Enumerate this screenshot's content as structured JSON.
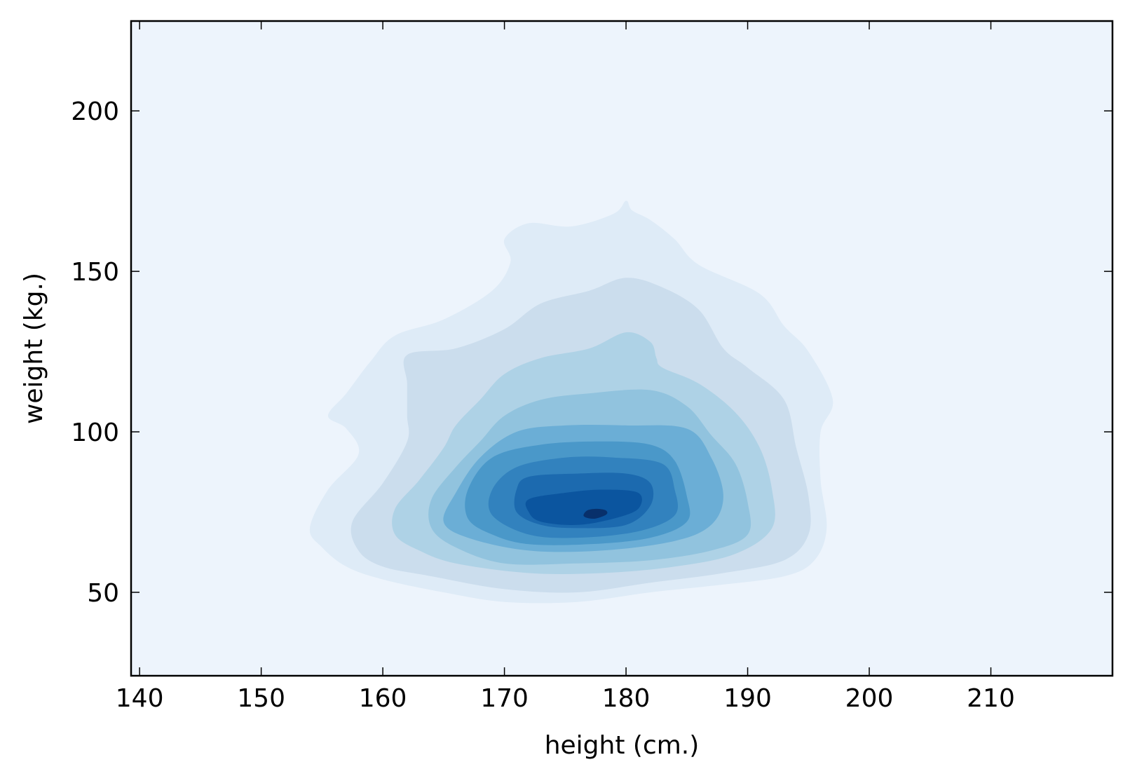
{
  "chart_data": {
    "type": "kde-contour",
    "title": "",
    "xlabel": "height (cm.)",
    "ylabel": "weight (kg.)",
    "xlim": [
      139.3,
      220
    ],
    "ylim": [
      24,
      228
    ],
    "xticks": [
      140,
      150,
      160,
      170,
      180,
      190,
      200,
      210
    ],
    "yticks": [
      50,
      100,
      150,
      200
    ],
    "grid": false,
    "legend": "none",
    "colors": {
      "background": "#edf4fc",
      "levels": [
        "#deebf7",
        "#cbdded",
        "#aed2e6",
        "#91c3de",
        "#6baed6",
        "#4a98c9",
        "#3282be",
        "#1c6aaf",
        "#0b559f",
        "#08306b"
      ]
    },
    "contours": [
      {
        "level": 1,
        "points": [
          [
            155,
            64
          ],
          [
            154,
            70
          ],
          [
            155.5,
            82
          ],
          [
            158,
            93
          ],
          [
            157,
            101
          ],
          [
            155.5,
            105
          ],
          [
            157,
            112
          ],
          [
            159,
            122
          ],
          [
            161,
            130
          ],
          [
            165,
            135
          ],
          [
            169,
            144
          ],
          [
            170.5,
            153
          ],
          [
            170,
            160
          ],
          [
            172,
            165
          ],
          [
            175.5,
            164
          ],
          [
            179,
            168
          ],
          [
            180,
            172
          ],
          [
            180.5,
            169
          ],
          [
            182,
            166
          ],
          [
            184,
            160
          ],
          [
            186,
            152
          ],
          [
            191,
            143
          ],
          [
            193,
            133
          ],
          [
            195,
            125
          ],
          [
            197,
            110
          ],
          [
            196,
            100
          ],
          [
            196,
            85
          ],
          [
            196.5,
            70
          ],
          [
            195.5,
            60
          ],
          [
            193,
            55
          ],
          [
            187,
            52
          ],
          [
            182,
            50
          ],
          [
            176,
            47
          ],
          [
            170,
            47
          ],
          [
            165,
            50
          ],
          [
            160,
            54
          ],
          [
            157,
            58
          ]
        ]
      },
      {
        "level": 2,
        "points": [
          [
            158,
            63
          ],
          [
            157.5,
            72
          ],
          [
            160,
            84
          ],
          [
            162,
            97
          ],
          [
            162,
            105
          ],
          [
            162,
            115
          ],
          [
            162,
            124
          ],
          [
            166,
            126
          ],
          [
            170,
            132
          ],
          [
            173,
            140
          ],
          [
            177,
            144
          ],
          [
            180,
            148
          ],
          [
            183,
            145
          ],
          [
            186,
            138
          ],
          [
            188,
            126
          ],
          [
            190,
            120
          ],
          [
            193,
            110
          ],
          [
            194,
            95
          ],
          [
            195,
            80
          ],
          [
            195,
            68
          ],
          [
            193,
            60
          ],
          [
            188,
            56
          ],
          [
            182,
            53
          ],
          [
            176,
            50
          ],
          [
            170,
            51
          ],
          [
            164,
            55
          ],
          [
            160,
            58
          ]
        ]
      },
      {
        "level": 3,
        "points": [
          [
            161,
            68
          ],
          [
            161,
            76
          ],
          [
            163,
            85
          ],
          [
            165,
            95
          ],
          [
            166,
            102
          ],
          [
            168,
            110
          ],
          [
            170,
            118
          ],
          [
            173,
            123
          ],
          [
            177,
            126
          ],
          [
            180,
            131
          ],
          [
            182,
            128
          ],
          [
            182.5,
            123
          ],
          [
            183,
            120
          ],
          [
            186,
            115
          ],
          [
            189,
            106
          ],
          [
            191,
            95
          ],
          [
            192,
            82
          ],
          [
            192,
            70
          ],
          [
            189,
            62
          ],
          [
            184,
            58
          ],
          [
            178,
            56
          ],
          [
            172,
            56
          ],
          [
            166,
            59
          ],
          [
            163,
            63
          ]
        ]
      },
      {
        "level": 4,
        "points": [
          [
            164,
            70
          ],
          [
            164,
            79
          ],
          [
            166,
            89
          ],
          [
            168,
            97
          ],
          [
            170,
            105
          ],
          [
            173,
            110
          ],
          [
            177,
            112
          ],
          [
            182,
            113
          ],
          [
            185,
            108
          ],
          [
            187,
            99
          ],
          [
            189,
            90
          ],
          [
            190,
            78
          ],
          [
            190,
            68
          ],
          [
            187,
            63
          ],
          [
            182,
            60
          ],
          [
            176,
            59
          ],
          [
            170,
            59
          ],
          [
            166,
            64
          ]
        ]
      },
      {
        "level": 5,
        "points": [
          [
            165,
            72
          ],
          [
            166,
            81
          ],
          [
            168,
            92
          ],
          [
            171,
            100
          ],
          [
            175,
            102
          ],
          [
            180,
            102
          ],
          [
            185,
            101
          ],
          [
            187,
            92
          ],
          [
            188,
            80
          ],
          [
            187,
            71
          ],
          [
            184,
            66
          ],
          [
            178,
            63
          ],
          [
            172,
            63
          ],
          [
            167,
            67
          ]
        ]
      },
      {
        "level": 6,
        "points": [
          [
            167,
            73
          ],
          [
            167,
            82
          ],
          [
            169,
            92
          ],
          [
            173,
            96
          ],
          [
            178,
            97
          ],
          [
            182,
            96
          ],
          [
            184,
            91
          ],
          [
            185,
            80
          ],
          [
            185,
            72
          ],
          [
            182,
            67
          ],
          [
            177,
            65
          ],
          [
            172,
            65
          ],
          [
            169,
            68
          ]
        ]
      },
      {
        "level": 7,
        "points": [
          [
            169,
            74
          ],
          [
            169,
            82
          ],
          [
            171,
            89
          ],
          [
            175,
            92
          ],
          [
            179,
            92
          ],
          [
            183,
            90
          ],
          [
            184,
            82
          ],
          [
            184,
            74
          ],
          [
            181,
            69
          ],
          [
            176,
            67
          ],
          [
            172,
            68
          ]
        ]
      },
      {
        "level": 8,
        "points": [
          [
            171,
            75
          ],
          [
            171,
            82
          ],
          [
            172,
            86
          ],
          [
            176,
            87
          ],
          [
            180,
            87
          ],
          [
            182,
            84
          ],
          [
            182,
            77
          ],
          [
            180,
            71
          ],
          [
            176,
            70
          ],
          [
            173,
            71
          ]
        ]
      },
      {
        "level": 9,
        "points": [
          [
            172,
            75
          ],
          [
            172,
            79
          ],
          [
            175,
            81
          ],
          [
            178,
            82
          ],
          [
            181,
            81
          ],
          [
            181,
            76
          ],
          [
            179,
            73
          ],
          [
            176,
            71
          ],
          [
            173,
            72
          ]
        ]
      },
      {
        "level": 10,
        "points": [
          [
            176.5,
            74
          ],
          [
            176.8,
            75.5
          ],
          [
            177.5,
            76
          ],
          [
            178.3,
            75.6
          ],
          [
            178.4,
            74.3
          ],
          [
            177.5,
            73
          ],
          [
            176.8,
            73.2
          ]
        ]
      }
    ]
  }
}
